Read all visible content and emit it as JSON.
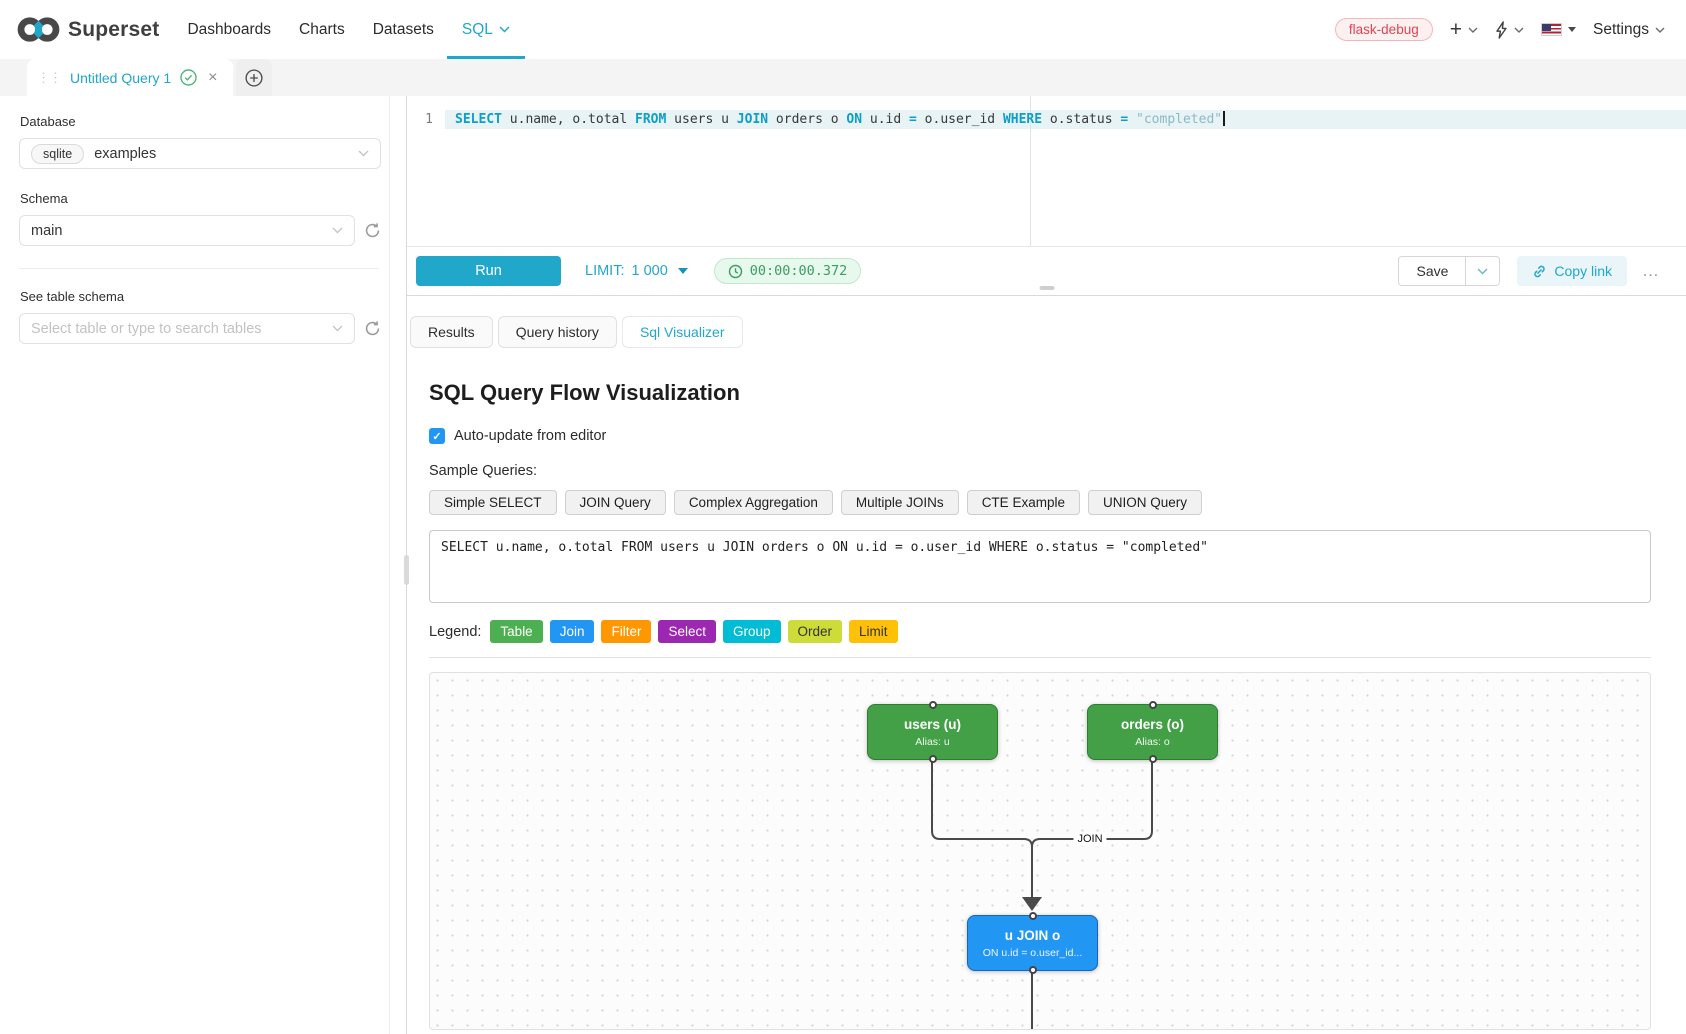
{
  "navbar": {
    "brand": "Superset",
    "items": [
      {
        "label": "Dashboards"
      },
      {
        "label": "Charts"
      },
      {
        "label": "Datasets"
      },
      {
        "label": "SQL",
        "active": true
      }
    ],
    "environment_tag": "flask-debug",
    "plus_glyph": "+",
    "settings_label": "Settings"
  },
  "tabstrip": {
    "active_tab_label": "Untitled Query 1",
    "drag_glyph": "⋮⋮",
    "close_glyph": "×"
  },
  "sidebar": {
    "database_label": "Database",
    "database_engine": "sqlite",
    "database_value": "examples",
    "schema_label": "Schema",
    "schema_value": "main",
    "table_section_label": "See table schema",
    "table_placeholder": "Select table or type to search tables"
  },
  "editor": {
    "line_number": "1",
    "tokens": [
      {
        "t": "SELECT",
        "c": "kw"
      },
      {
        "t": " u.name, o.total ",
        "c": "plain"
      },
      {
        "t": "FROM",
        "c": "kw"
      },
      {
        "t": " users u ",
        "c": "plain"
      },
      {
        "t": "JOIN",
        "c": "kw"
      },
      {
        "t": " orders o ",
        "c": "plain"
      },
      {
        "t": "ON",
        "c": "kw"
      },
      {
        "t": " u.id ",
        "c": "plain"
      },
      {
        "t": "=",
        "c": "kw"
      },
      {
        "t": " o.user_id ",
        "c": "plain"
      },
      {
        "t": "WHERE",
        "c": "kw"
      },
      {
        "t": " o.status ",
        "c": "plain"
      },
      {
        "t": "=",
        "c": "kw"
      },
      {
        "t": " ",
        "c": "plain"
      },
      {
        "t": "\"completed\"",
        "c": "str"
      }
    ]
  },
  "toolbar": {
    "run_label": "Run",
    "limit_label": "LIMIT:",
    "limit_value": "1 000",
    "timer_value": "00:00:00.372",
    "save_label": "Save",
    "copy_link_label": "Copy link",
    "more_glyph": "…"
  },
  "result_tabs": [
    {
      "label": "Results"
    },
    {
      "label": "Query history"
    },
    {
      "label": "Sql Visualizer",
      "active": true
    }
  ],
  "visualizer": {
    "title": "SQL Query Flow Visualization",
    "auto_update_label": "Auto-update from editor",
    "auto_update_checked": true,
    "check_glyph": "✓",
    "sample_queries_label": "Sample Queries:",
    "sample_buttons": [
      "Simple SELECT",
      "JOIN Query",
      "Complex Aggregation",
      "Multiple JOINs",
      "CTE Example",
      "UNION Query"
    ],
    "sql_input_value": "SELECT u.name, o.total FROM users u JOIN orders o ON u.id = o.user_id WHERE o.status = \"completed\"",
    "legend_label": "Legend:",
    "legend": [
      {
        "label": "Table",
        "color": "#4CAF50",
        "text_color": "#ffffff"
      },
      {
        "label": "Join",
        "color": "#2196F3",
        "text_color": "#ffffff"
      },
      {
        "label": "Filter",
        "color": "#FF9800",
        "text_color": "#ffffff"
      },
      {
        "label": "Select",
        "color": "#9C27B0",
        "text_color": "#ffffff"
      },
      {
        "label": "Group",
        "color": "#00BCD4",
        "text_color": "#ffffff"
      },
      {
        "label": "Order",
        "color": "#CDDC39",
        "text_color": "#333333"
      },
      {
        "label": "Limit",
        "color": "#FFC107",
        "text_color": "#333333"
      }
    ],
    "flow": {
      "edge_label": "JOIN",
      "nodes": [
        {
          "title": "users (u)",
          "subtitle": "Alias: u",
          "fill": "#43A047",
          "border": "#2E7D32"
        },
        {
          "title": "orders (o)",
          "subtitle": "Alias: o",
          "fill": "#43A047",
          "border": "#2E7D32"
        },
        {
          "title": "u JOIN o",
          "subtitle": "ON u.id = o.user_id...",
          "fill": "#2196F3",
          "border": "#1565C0"
        }
      ]
    }
  },
  "colors": {
    "accent": "#20a7c9",
    "env_tag_text": "#e04355",
    "timer_text": "#3d9c64"
  }
}
